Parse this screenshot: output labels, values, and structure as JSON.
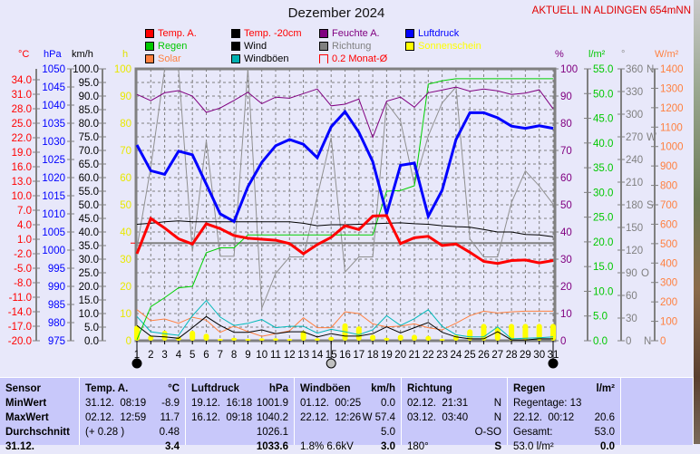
{
  "title": "Dezember 2024",
  "station": "AKTUELL IN ALDINGEN 654mNN",
  "colors": {
    "temp": "#ff0000",
    "temp20": "#000000",
    "humidity": "#800080",
    "pressure": "#0000ff",
    "rain": "#00c800",
    "wind": "#000000",
    "direction": "#808080",
    "sunshine": "#ffff00",
    "solar": "#ff8040",
    "gusts": "#00b0b0",
    "background": "#e8e8fa",
    "table": "#c8c8fa"
  },
  "legend": [
    {
      "label": "Temp. A.",
      "color": "#ff0000",
      "text_color": "#ff0000"
    },
    {
      "label": "Temp. -20cm",
      "color": "#000000",
      "text_color": "#ff0000"
    },
    {
      "label": "Feuchte A.",
      "color": "#800080",
      "text_color": "#800080"
    },
    {
      "label": "Luftdruck",
      "color": "#0000ff",
      "text_color": "#0000ff"
    },
    {
      "label": "Regen",
      "color": "#00c800",
      "text_color": "#00c800"
    },
    {
      "label": "Wind",
      "color": "#000000",
      "text_color": "#000000"
    },
    {
      "label": "Richtung",
      "color": "#808080",
      "text_color": "#808080"
    },
    {
      "label": "Sonnenschein",
      "color": "#ffff00",
      "text_color": "#ffff00"
    },
    {
      "label": "Solar",
      "color": "#ff8040",
      "text_color": "#ff8040"
    },
    {
      "label": "Windböen",
      "color": "#00b0b0",
      "text_color": "#000000"
    },
    {
      "label": "0.2 Monat-Ø",
      "color": "none",
      "text_color": "#ff0000"
    }
  ],
  "chart_data": {
    "type": "line",
    "title": "Dezember 2024",
    "x": [
      1,
      2,
      3,
      4,
      5,
      6,
      7,
      8,
      9,
      10,
      11,
      12,
      13,
      14,
      15,
      16,
      17,
      18,
      19,
      20,
      21,
      22,
      23,
      24,
      25,
      26,
      27,
      28,
      29,
      30,
      31
    ],
    "axes": {
      "temp": {
        "unit": "°C",
        "range": [
          -20,
          36.25
        ],
        "ticks": [
          -20,
          -17,
          -14,
          -11,
          -8,
          -5,
          -2,
          1,
          4,
          7,
          10,
          13,
          16,
          19,
          22,
          25,
          28,
          31,
          34
        ]
      },
      "pressure": {
        "unit": "hPa",
        "range": [
          975,
          1050
        ],
        "ticks": [
          975,
          980,
          985,
          990,
          995,
          1000,
          1005,
          1010,
          1015,
          1020,
          1025,
          1030,
          1035,
          1040,
          1045,
          1050
        ]
      },
      "wind": {
        "unit": "km/h",
        "range": [
          0,
          100
        ],
        "ticks": [
          0,
          5,
          10,
          15,
          20,
          25,
          30,
          35,
          40,
          45,
          50,
          55,
          60,
          65,
          70,
          75,
          80,
          85,
          90,
          95,
          100
        ]
      },
      "sunshine": {
        "unit": "h",
        "range": [
          0,
          100
        ],
        "ticks": [
          0,
          10,
          20,
          30,
          40,
          50,
          60,
          70,
          80,
          90,
          100
        ]
      },
      "humidity": {
        "unit": "%",
        "range": [
          0,
          100
        ],
        "ticks": [
          0,
          10,
          20,
          30,
          40,
          50,
          60,
          70,
          80,
          90,
          100
        ]
      },
      "rain": {
        "unit": "l/m²",
        "range": [
          0,
          55
        ],
        "ticks": [
          0,
          5,
          10,
          15,
          20,
          25,
          30,
          35,
          40,
          45,
          50,
          55
        ]
      },
      "direction": {
        "unit": "°",
        "range": [
          0,
          360
        ],
        "ticks": [
          0,
          30,
          60,
          90,
          120,
          150,
          180,
          210,
          240,
          270,
          300,
          330,
          360
        ],
        "compass": {
          "0": "N",
          "90": "O",
          "180": "S",
          "270": "W",
          "360": "N"
        }
      },
      "solar": {
        "unit": "W/m²",
        "range": [
          0,
          1400
        ],
        "ticks": [
          0,
          100,
          200,
          300,
          400,
          500,
          600,
          700,
          800,
          900,
          1000,
          1100,
          1200,
          1300,
          1400
        ]
      }
    },
    "reference_line": {
      "label": "0.2 Monat-Ø",
      "axis": "temp",
      "value": 0.2
    },
    "series": [
      {
        "name": "Sonnenschein",
        "axis": "sunshine",
        "kind": "bar",
        "values": [
          5.6,
          2,
          3.7,
          1.4,
          3.7,
          2.6,
          0.7,
          1.1,
          0.7,
          0.9,
          0.9,
          0.7,
          3.7,
          0.9,
          1.4,
          6.4,
          5.3,
          2.2,
          1.1,
          2.2,
          2.2,
          1.8,
          0.7,
          2.2,
          4.2,
          6.2,
          5.1,
          6.2,
          6.2,
          6.2,
          6.2
        ]
      },
      {
        "name": "Solar",
        "axis": "solar",
        "values": [
          160,
          103,
          112,
          90,
          121,
          106,
          43,
          75,
          47,
          23,
          36,
          51,
          118,
          67,
          67,
          149,
          140,
          87,
          71,
          75,
          87,
          67,
          56,
          90,
          129,
          152,
          143,
          149,
          152,
          152,
          152
        ]
      },
      {
        "name": "Windböen",
        "axis": "wind",
        "values": [
          8.9,
          3.3,
          2.6,
          2.0,
          9.2,
          14.8,
          8.7,
          5.6,
          6.4,
          7.8,
          4.8,
          5.3,
          5.3,
          2.8,
          4.2,
          3.3,
          2.2,
          4.0,
          9.2,
          5.6,
          8.1,
          11.4,
          5.3,
          2.2,
          1.4,
          1.4,
          5.1,
          0.7,
          0.9,
          1.1,
          1.4
        ]
      },
      {
        "name": "Wind",
        "axis": "wind",
        "values": [
          5.6,
          1.7,
          1.4,
          0.9,
          4.8,
          8.9,
          5.6,
          3.1,
          3.1,
          4.0,
          2.6,
          3.3,
          3.3,
          1.4,
          2.6,
          1.7,
          1.7,
          2.6,
          5.1,
          2.9,
          4.8,
          6.7,
          3.1,
          1.4,
          0.7,
          0.7,
          3.3,
          0.3,
          0.3,
          0.7,
          0.7
        ]
      },
      {
        "name": "Richtung",
        "axis": "direction",
        "values": [
          123,
          230,
          360,
          360,
          118,
          265,
          112,
          112,
          360,
          43,
          89,
          111,
          111,
          191,
          269,
          91,
          111,
          111,
          315,
          291,
          207,
          271,
          315,
          336,
          135,
          111,
          111,
          183,
          225,
          205,
          181
        ]
      },
      {
        "name": "Regen",
        "axis": "rain",
        "values": [
          0.2,
          6.9,
          8.7,
          10.7,
          11,
          17.8,
          18.8,
          18.8,
          21.4,
          21.4,
          21.4,
          21.4,
          21.4,
          21.4,
          21.4,
          21.4,
          21.4,
          21.4,
          30.25,
          30.4,
          31.35,
          51.9,
          52.6,
          53,
          53,
          53,
          53,
          53,
          53,
          53,
          53
        ]
      },
      {
        "name": "Feuchte A.",
        "axis": "humidity",
        "values": [
          90.6,
          88.3,
          91.2,
          92,
          90,
          84,
          85.6,
          88.4,
          91.4,
          87.2,
          89.6,
          89.2,
          90.9,
          92.6,
          86.4,
          87,
          88.9,
          74.8,
          88.1,
          89.6,
          85.9,
          91.2,
          92.2,
          93.3,
          91.8,
          92.6,
          91.9,
          90.6,
          91.1,
          92.3,
          85.3
        ]
      },
      {
        "name": "Temp. -20cm",
        "axis": "temp",
        "values": [
          4.1,
          4.3,
          4.6,
          4.8,
          4.6,
          4.6,
          4.6,
          4.6,
          4.6,
          4.6,
          4.6,
          4.6,
          4.3,
          3.8,
          4.0,
          4.0,
          4.1,
          4.2,
          4.3,
          4.4,
          4.2,
          4.1,
          3.8,
          3.6,
          3.5,
          3.0,
          2.5,
          2.5,
          2.0,
          1.9,
          1.5
        ]
      },
      {
        "name": "Luftdruck",
        "axis": "pressure",
        "values": [
          1029,
          1021.9,
          1020.9,
          1027.3,
          1026.3,
          1018.2,
          1010,
          1007.9,
          1017.5,
          1024.2,
          1028.8,
          1030.5,
          1029.2,
          1025.5,
          1034,
          1038.2,
          1032.5,
          1024.4,
          1010,
          1023.4,
          1024,
          1009.3,
          1016.5,
          1030.5,
          1037.9,
          1037.9,
          1036.5,
          1034.2,
          1033.6,
          1034.3,
          1033.6
        ]
      },
      {
        "name": "Temp. A.",
        "axis": "temp",
        "values": [
          -2.0,
          5.3,
          3.3,
          1.1,
          0,
          4.2,
          3.2,
          1.75,
          1.2,
          1.0,
          0.8,
          0.1,
          -2.0,
          -0.1,
          1.4,
          3.8,
          3.0,
          5.8,
          5.9,
          0.1,
          1.3,
          1.6,
          -0.3,
          0,
          -1.7,
          -3.6,
          -4.0,
          -3.4,
          -3.3,
          -3.9,
          -3.4
        ]
      }
    ],
    "moon_phases": [
      {
        "day": 1,
        "phase": "new-moon"
      },
      {
        "day": 15,
        "phase": "full-moon"
      },
      {
        "day": 31,
        "phase": "new-moon"
      }
    ]
  },
  "table": {
    "sensor": {
      "header": "Sensor",
      "rows": [
        "MinWert",
        "MaxWert",
        "Durchschnitt",
        "31.12."
      ]
    },
    "columns": [
      {
        "title": "Temp. A.",
        "unit": "°C",
        "rows": [
          [
            "31.12.  08:19",
            "-8.9"
          ],
          [
            "02.12.  12:59",
            "11.7"
          ],
          [
            "(+ 0.28 )",
            "0.48"
          ],
          [
            "",
            "3.4"
          ]
        ]
      },
      {
        "title": "Luftdruck",
        "unit": "hPa",
        "rows": [
          [
            "19.12.  16:18",
            "1001.9"
          ],
          [
            "16.12.  09:18",
            "1040.2"
          ],
          [
            "",
            "1026.1"
          ],
          [
            "",
            "1033.6"
          ]
        ]
      },
      {
        "title": "Windböen",
        "unit": "km/h",
        "rows": [
          [
            "01.12.  00:25",
            "0.0"
          ],
          [
            "22.12.  12:26",
            "W 57.4"
          ],
          [
            "",
            "5.0"
          ],
          [
            "1.8% 6.6kV",
            "3.0"
          ]
        ]
      },
      {
        "title": "Richtung",
        "unit": "",
        "rows": [
          [
            "02.12.  21:31",
            "N"
          ],
          [
            "03.12.  03:40",
            "N"
          ],
          [
            "",
            "O-SO"
          ],
          [
            "180°",
            "S"
          ]
        ]
      },
      {
        "title": "Regen",
        "unit": "l/m²",
        "rows": [
          [
            "Regentage: 13",
            ""
          ],
          [
            "22.12.  00:12",
            "20.6"
          ],
          [
            "Gesamt:",
            "53.0"
          ],
          [
            "53.0 l/m²",
            "0.0"
          ]
        ]
      }
    ]
  }
}
